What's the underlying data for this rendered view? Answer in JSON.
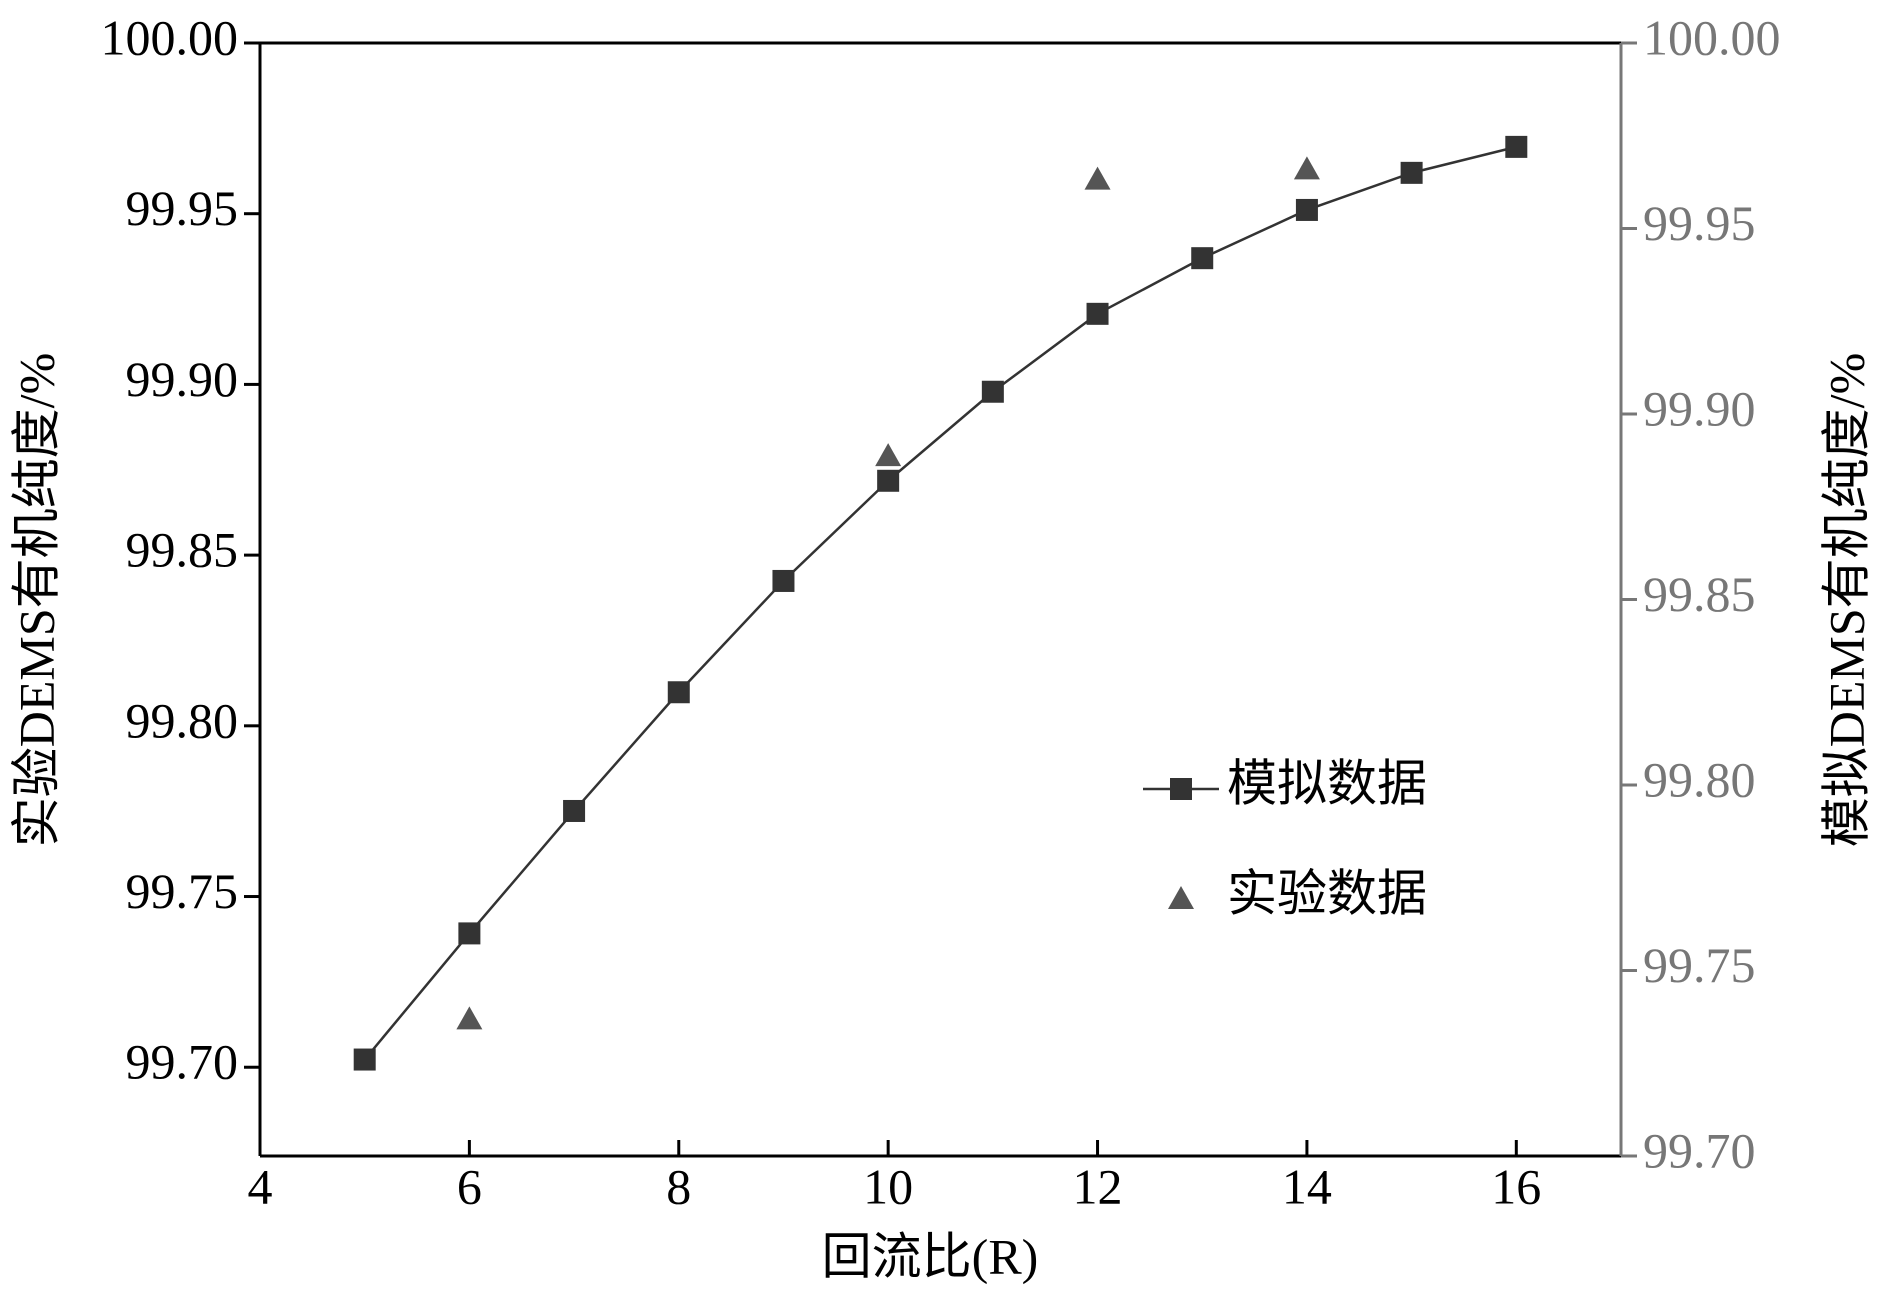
{
  "chart_data": {
    "type": "line",
    "xlabel": "回流比(R)",
    "ylabel": "实验DEMS有机纯度/%",
    "y2label": "模拟DEMS有机纯度/%",
    "xlim": [
      4,
      17
    ],
    "xticks": [
      4,
      6,
      8,
      10,
      12,
      14,
      16
    ],
    "ylim": [
      99.674,
      100.0
    ],
    "yticks": [
      {
        "value": 99.7,
        "label": "99.70"
      },
      {
        "value": 99.75,
        "label": "99.75"
      },
      {
        "value": 99.8,
        "label": "99.80"
      },
      {
        "value": 99.85,
        "label": "99.85"
      },
      {
        "value": 99.9,
        "label": "99.90"
      },
      {
        "value": 99.95,
        "label": "99.95"
      },
      {
        "value": 100.0,
        "label": "100.00"
      }
    ],
    "y2lim": [
      99.7,
      100.0
    ],
    "y2ticks": [
      {
        "value": 99.7,
        "label": "99.70"
      },
      {
        "value": 99.75,
        "label": "99.75"
      },
      {
        "value": 99.8,
        "label": "99.80"
      },
      {
        "value": 99.85,
        "label": "99.85"
      },
      {
        "value": 99.9,
        "label": "99.90"
      },
      {
        "value": 99.95,
        "label": "99.95"
      },
      {
        "value": 100.0,
        "label": "100.00"
      }
    ],
    "y2color": "#777777",
    "legend": "center right",
    "series": [
      {
        "name": "模拟数据",
        "color": "#333333",
        "marker": "square",
        "axis": "y2",
        "x": [
          5,
          6,
          7,
          8,
          9,
          10,
          11,
          12,
          13,
          14,
          15,
          16
        ],
        "values": [
          99.726,
          99.76,
          99.793,
          99.825,
          99.855,
          99.882,
          99.906,
          99.927,
          99.942,
          99.955,
          99.965,
          99.972
        ]
      },
      {
        "name": "实验数据",
        "color": "#555555",
        "marker": "triangle",
        "x": [
          6,
          10,
          12,
          14
        ],
        "values": [
          99.714,
          99.879,
          99.96,
          99.963
        ]
      }
    ]
  }
}
